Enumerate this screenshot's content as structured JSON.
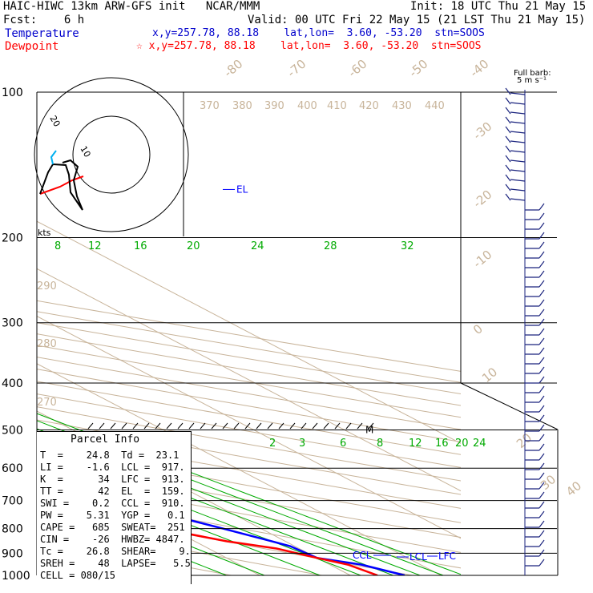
{
  "header": {
    "title_line": "HAIC-HIWC 13km ARW-GFS init   NCAR/MMM",
    "init": "Init: 18 UTC Thu 21 May 15",
    "fcst": "Fcst:    6 h",
    "valid": "Valid: 00 UTC Fri 22 May 15 (21 LST Thu 21 May 15)",
    "temperature_label": "Temperature",
    "temperature_loc": "x,y=257.78, 88.18    lat,lon=  3.60, -53.20  stn=SOOS",
    "dewpoint_label": "Dewpoint",
    "dewpoint_loc": "☆ x,y=257.78, 88.18    lat,lon=  3.60, -53.20  stn=SOOS"
  },
  "colors": {
    "temperature": "#0000ff",
    "dewpoint": "#ff0000",
    "isotherm": "#c8b49a",
    "mixing_ratio": "#00aa00",
    "barb": "#1a237e",
    "hodo_ring": "#000000"
  },
  "chart_data": {
    "type": "skew-t",
    "pressure_levels": [
      100,
      200,
      300,
      400,
      500,
      600,
      700,
      800,
      900,
      1000
    ],
    "ylim": [
      1000,
      100
    ],
    "temperature_labels": [
      -80,
      -70,
      -60,
      -50,
      -40,
      -30,
      -20,
      -10,
      0,
      10,
      20,
      30,
      40
    ],
    "theta_labels": [
      260,
      270,
      280,
      290,
      370,
      380,
      390,
      400,
      410,
      420,
      430,
      440
    ],
    "mixing_ratio_labels_upper": [
      8,
      12,
      16,
      20,
      24,
      28,
      32
    ],
    "mixing_ratio_labels_lower": [
      2,
      3,
      4,
      6,
      8,
      12,
      16,
      20,
      24
    ],
    "series": [
      {
        "name": "Temperature",
        "color": "#0000ff",
        "points": [
          [
            1000,
            26.0
          ],
          [
            950,
            23.5
          ],
          [
            920,
            20.0
          ],
          [
            870,
            19.5
          ],
          [
            850,
            18.5
          ],
          [
            800,
            15.8
          ],
          [
            700,
            9.5
          ],
          [
            600,
            3.0
          ],
          [
            500,
            -5.5
          ],
          [
            400,
            -16.5
          ],
          [
            300,
            -31.0
          ],
          [
            250,
            -41.0
          ],
          [
            200,
            -53.0
          ],
          [
            150,
            -69.0
          ],
          [
            120,
            -76.0
          ],
          [
            100,
            -80.0
          ]
        ]
      },
      {
        "name": "Dewpoint",
        "color": "#ff0000",
        "points": [
          [
            1000,
            23.0
          ],
          [
            950,
            22.0
          ],
          [
            920,
            20.0
          ],
          [
            880,
            17.5
          ],
          [
            850,
            13.5
          ],
          [
            800,
            9.0
          ],
          [
            700,
            2.0
          ],
          [
            600,
            -5.0
          ],
          [
            500,
            -22.0
          ],
          [
            450,
            -27.0
          ],
          [
            400,
            -30.0
          ],
          [
            350,
            -38.0
          ],
          [
            300,
            -44.0
          ],
          [
            250,
            -53.0
          ],
          [
            200,
            -65.0
          ],
          [
            150,
            -79.0
          ],
          [
            120,
            -85.0
          ],
          [
            100,
            -87.0
          ]
        ]
      }
    ],
    "annotations": [
      {
        "text": "EL",
        "pressure": 159
      },
      {
        "text": "M",
        "pressure": 500
      },
      {
        "text": "CCL",
        "pressure": 910
      },
      {
        "text": "LCL",
        "pressure": 917
      },
      {
        "text": "LFC",
        "pressure": 913
      }
    ],
    "barb_header": "Full barb:",
    "barb_units": "5 m s⁻¹",
    "hodograph": {
      "unit_label": "kts",
      "rings": [
        10,
        20
      ],
      "ring_labels": [
        "10",
        "20"
      ]
    }
  },
  "parcel_info": {
    "title": "Parcel Info",
    "rows": [
      "T  =    24.8  Td =  23.1",
      "LI =    -1.6  LCL =  917.",
      "K  =      34  LFC =  913.",
      "TT =      42  EL  =  159.",
      "SWI =    0.2  CCL =  910.",
      "PW =    5.31  YGP =   0.1",
      "CAPE =   685  SWEAT=  251",
      "CIN =    -26  HWBZ= 4847.",
      "Tc =    26.8  SHEAR=    9.",
      "SREH =    48  LAPSE=   5.5",
      "CELL = 080/15"
    ]
  }
}
